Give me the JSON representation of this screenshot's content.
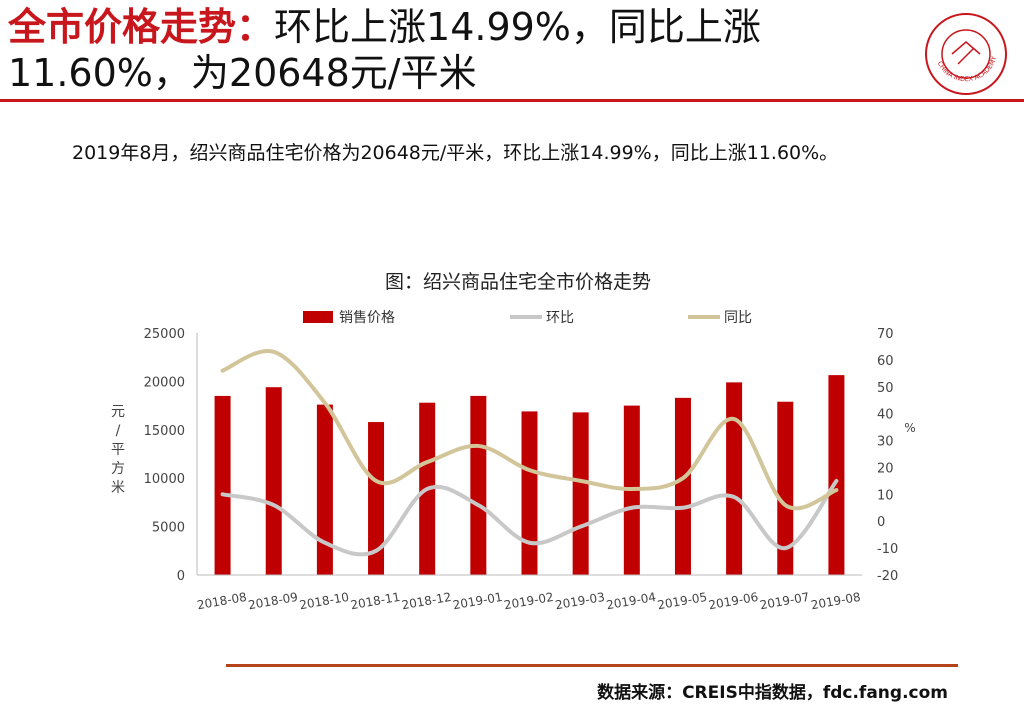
{
  "header": {
    "title_accent": "全市价格走势：",
    "title_rest": "环比上涨14.99%，同比上涨",
    "title_line2": "11.60%，为20648元/平米"
  },
  "summary": "2019年8月，绍兴商品住宅价格为20648元/平米，环比上涨14.99%，同比上涨11.60%。",
  "logo": {
    "text": "CHINA INDEX ACADEMY",
    "icon": "china-index-academy-seal"
  },
  "source": "数据来源：CREIS中指数据，fdc.fang.com",
  "colors": {
    "bar": "#c00000",
    "mom": "#c8c8c8",
    "yoy": "#d2c59a",
    "accent": "#c8161d",
    "rule": "#b5441b"
  },
  "chart_data": {
    "type": "bar",
    "title": "图：绍兴商品住宅全市价格走势",
    "categories": [
      "2018-08",
      "2018-09",
      "2018-10",
      "2018-11",
      "2018-12",
      "2019-01",
      "2019-02",
      "2019-03",
      "2019-04",
      "2019-05",
      "2019-06",
      "2019-07",
      "2019-08"
    ],
    "series": [
      {
        "name": "销售价格",
        "type": "bar",
        "axis": "left",
        "values": [
          18500,
          19400,
          17600,
          15800,
          17800,
          18500,
          16900,
          16800,
          17500,
          18300,
          19900,
          17900,
          20648
        ]
      },
      {
        "name": "环比",
        "type": "line",
        "axis": "right",
        "values": [
          10,
          6,
          -8,
          -11,
          12,
          6,
          -8,
          -2,
          5,
          5,
          9,
          -10,
          14.99
        ]
      },
      {
        "name": "同比",
        "type": "line",
        "axis": "right",
        "values": [
          56,
          63,
          44,
          15,
          22,
          28,
          19,
          15,
          12,
          16,
          38,
          6,
          11.6
        ]
      }
    ],
    "ylabel": "元/平方米",
    "y2label": "%",
    "ylim": [
      0,
      25000
    ],
    "y2lim": [
      -20,
      70
    ],
    "yticks": [
      "0",
      "5000",
      "10000",
      "15000",
      "20000",
      "25000"
    ],
    "y2ticks": [
      "-20",
      "-10",
      "0",
      "10",
      "20",
      "30",
      "40",
      "50",
      "60",
      "70"
    ],
    "legend": "top",
    "grid": false
  }
}
